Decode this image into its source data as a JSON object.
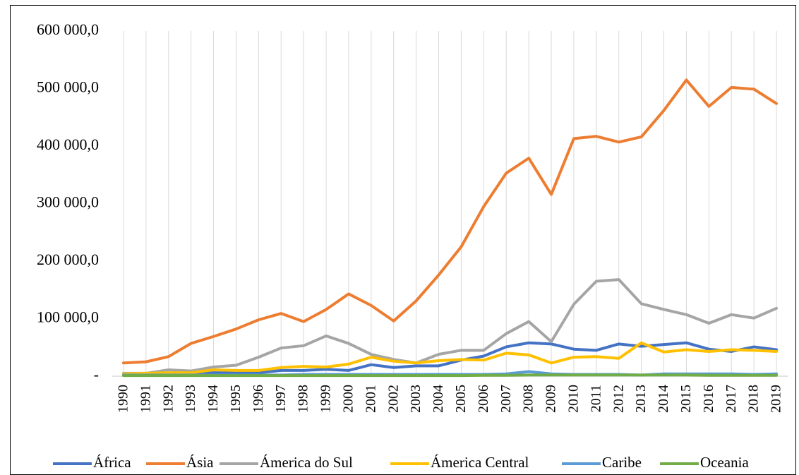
{
  "chart_data": {
    "type": "line",
    "categories": [
      "1990",
      "1991",
      "1992",
      "1993",
      "1994",
      "1995",
      "1996",
      "1997",
      "1998",
      "1999",
      "2000",
      "2001",
      "2002",
      "2003",
      "2004",
      "2005",
      "2006",
      "2007",
      "2008",
      "2009",
      "2010",
      "2011",
      "2012",
      "2013",
      "2014",
      "2015",
      "2016",
      "2017",
      "2018",
      "2019"
    ],
    "series": [
      {
        "name": "África",
        "color": "#4472c4",
        "values": [
          3000,
          3000,
          4000,
          5000,
          6000,
          6000,
          6000,
          10000,
          10000,
          12000,
          10000,
          20000,
          15000,
          18000,
          18000,
          28000,
          35000,
          51000,
          58000,
          56000,
          47000,
          45000,
          56000,
          52000,
          55000,
          58000,
          47000,
          43000,
          51000,
          46000
        ]
      },
      {
        "name": "Ásia",
        "color": "#ed7d31",
        "values": [
          23000,
          25000,
          34000,
          57000,
          69000,
          82000,
          98000,
          109000,
          95000,
          116000,
          143000,
          123000,
          96000,
          131000,
          176000,
          225000,
          295000,
          353000,
          379000,
          316000,
          413000,
          417000,
          407000,
          416000,
          462000,
          515000,
          469000,
          502000,
          499000,
          474000
        ]
      },
      {
        "name": "Ámerica do Sul",
        "color": "#a5a5a5",
        "values": [
          5000,
          5000,
          11000,
          9000,
          16000,
          19000,
          33000,
          49000,
          53000,
          70000,
          57000,
          38000,
          29000,
          23000,
          38000,
          45000,
          45000,
          74000,
          95000,
          60000,
          125000,
          165000,
          168000,
          126000,
          116000,
          107000,
          92000,
          107000,
          101000,
          118000
        ]
      },
      {
        "name": "Ámerica Central",
        "color": "#ffc000",
        "values": [
          4000,
          5000,
          6000,
          6000,
          11000,
          10000,
          10000,
          15000,
          17000,
          16000,
          21000,
          33000,
          26000,
          23000,
          27000,
          29000,
          28000,
          40000,
          37000,
          23000,
          33000,
          34000,
          31000,
          58000,
          42000,
          46000,
          43000,
          46000,
          45000,
          43000
        ]
      },
      {
        "name": "Caribe",
        "color": "#5b9bd5",
        "values": [
          2000,
          2000,
          2000,
          2000,
          2000,
          2000,
          2000,
          2000,
          3000,
          3000,
          3000,
          3000,
          3000,
          3000,
          3000,
          3000,
          3000,
          4000,
          8000,
          4000,
          3000,
          3000,
          3000,
          2000,
          4000,
          4000,
          4000,
          4000,
          3000,
          4000
        ]
      },
      {
        "name": "Oceania",
        "color": "#70ad47",
        "values": [
          1000,
          1000,
          1000,
          1000,
          1000,
          1000,
          1000,
          1000,
          1000,
          1000,
          1000,
          1000,
          1000,
          1000,
          1000,
          1000,
          1500,
          1500,
          2000,
          2000,
          2000,
          2000,
          2000,
          2000,
          2000,
          2000,
          1500,
          1500,
          1500,
          1500
        ]
      }
    ],
    "ylim": [
      0,
      600000
    ],
    "yticks": [
      {
        "value": 0,
        "label": "-"
      },
      {
        "value": 100000,
        "label": "100 000,0"
      },
      {
        "value": 200000,
        "label": "200 000,0"
      },
      {
        "value": 300000,
        "label": "300 000,0"
      },
      {
        "value": 400000,
        "label": "400 000,0"
      },
      {
        "value": 500000,
        "label": "500 000,0"
      },
      {
        "value": 600000,
        "label": "600 000,0"
      }
    ],
    "grid": true,
    "legend": "bottom"
  }
}
